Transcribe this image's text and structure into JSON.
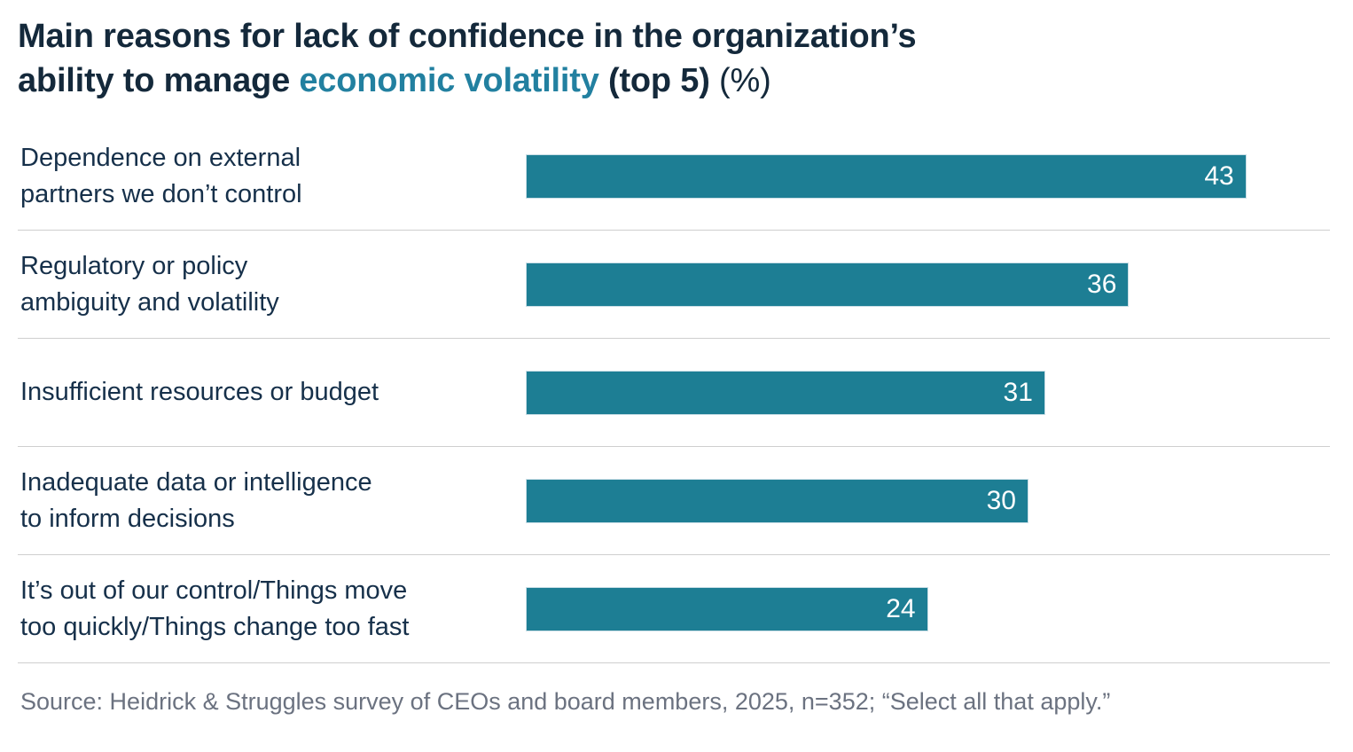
{
  "title": {
    "line1": "Main reasons for lack of confidence in the organization’s",
    "line2_prefix": "ability to manage ",
    "line2_highlight": "economic volatility",
    "line2_bold_suffix": " (top 5)",
    "line2_regular_suffix": " (%)"
  },
  "source": "Source: Heidrick & Struggles survey of CEOs and board members, 2025, n=352; “Select all that apply.”",
  "colors": {
    "bar": "#1D7E94",
    "title_navy": "#14293B",
    "title_teal": "#2280A0",
    "label": "#16304A",
    "source": "#6B7280",
    "divider": "#CFCFCF",
    "value_label": "#FFFFFF"
  },
  "chart_data": {
    "type": "bar",
    "orientation": "horizontal",
    "title": "Main reasons for lack of confidence in the organization’s ability to manage economic volatility (top 5) (%)",
    "unit": "%",
    "categories": [
      "Dependence on external\npartners we don’t control",
      "Regulatory or policy\nambiguity and volatility",
      "Insufficient resources or budget",
      "Inadequate data or intelligence\nto inform decisions",
      "It’s out of our control/Things move\ntoo quickly/Things change too fast"
    ],
    "values": [
      43,
      36,
      31,
      30,
      24
    ],
    "xlim": [
      0,
      46
    ],
    "value_label_position": "inside-end",
    "grid": false,
    "legend": false
  }
}
